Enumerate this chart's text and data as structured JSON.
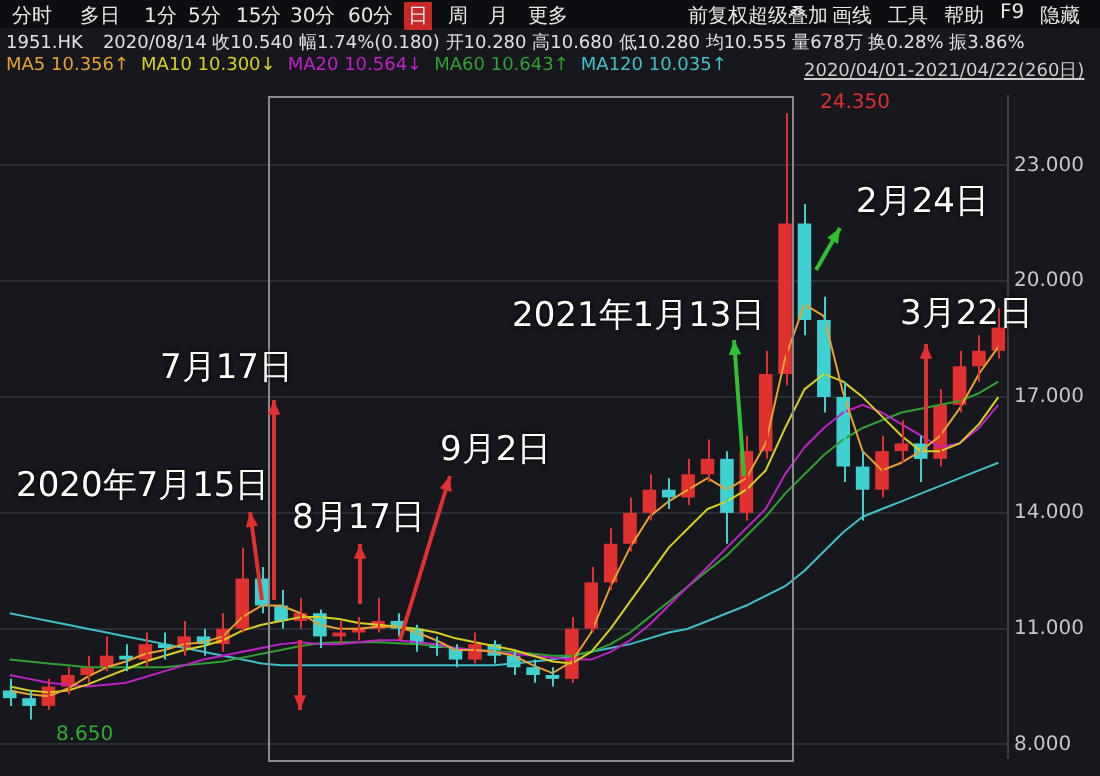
{
  "chart_data": {
    "type": "candlestick",
    "title": "1951.HK",
    "subtitle": "2020/08/14 收10.540 幅1.74%(0.180) 开10.280 高10.680 低10.280 均10.555 量678万 换0.28% 振3.86%",
    "annotations": [
      "分时",
      "多日",
      "1分",
      "5分",
      "15分",
      "30分",
      "60分",
      "日",
      "周",
      "月",
      "更多",
      "前复权",
      "超级叠加",
      "画线",
      "工具",
      "帮助",
      "F9",
      "隐藏",
      "2020/04/01-2021/04/22(260日)",
      "2020年7月15日",
      "7月17日",
      "8月17日",
      "9月2日",
      "2021年1月13日",
      "2月24日",
      "3月22日",
      "8.650",
      "24.350"
    ],
    "categories": [
      null,
      null,
      null,
      null,
      null,
      null,
      null,
      null,
      null,
      null,
      null,
      null,
      null,
      null,
      null,
      null,
      null,
      null,
      null,
      null,
      null,
      null,
      null,
      null,
      null,
      null,
      null,
      null,
      null,
      null,
      null,
      null,
      null,
      null,
      null,
      null,
      null,
      null,
      null,
      null,
      null,
      null,
      null,
      null,
      null,
      null,
      null,
      null,
      null,
      null,
      null,
      null
    ],
    "ohlc": [
      [
        9.4,
        9.7,
        9.0,
        9.2
      ],
      [
        9.2,
        9.4,
        8.65,
        9.0
      ],
      [
        9.0,
        9.7,
        8.9,
        9.5
      ],
      [
        9.5,
        10.0,
        9.3,
        9.8
      ],
      [
        9.8,
        10.3,
        9.6,
        10.0
      ],
      [
        10.0,
        10.8,
        9.9,
        10.3
      ],
      [
        10.3,
        10.6,
        9.9,
        10.2
      ],
      [
        10.2,
        10.9,
        10.0,
        10.6
      ],
      [
        10.6,
        10.9,
        10.2,
        10.5
      ],
      [
        10.5,
        11.2,
        10.3,
        10.8
      ],
      [
        10.8,
        11.0,
        10.3,
        10.6
      ],
      [
        10.6,
        11.4,
        10.4,
        11.0
      ],
      [
        11.0,
        13.1,
        10.9,
        12.3
      ],
      [
        12.3,
        12.6,
        11.4,
        11.6
      ],
      [
        11.6,
        12.0,
        11.0,
        11.2
      ],
      [
        11.2,
        11.8,
        11.0,
        11.4
      ],
      [
        11.4,
        11.5,
        10.5,
        10.8
      ],
      [
        10.8,
        11.2,
        10.6,
        10.9
      ],
      [
        10.9,
        11.3,
        10.7,
        11.0
      ],
      [
        11.0,
        11.8,
        10.9,
        11.2
      ],
      [
        11.2,
        11.4,
        10.8,
        11.0
      ],
      [
        11.0,
        11.1,
        10.4,
        10.6
      ],
      [
        10.6,
        10.8,
        10.3,
        10.5
      ],
      [
        10.5,
        10.6,
        10.0,
        10.2
      ],
      [
        10.2,
        10.9,
        10.1,
        10.6
      ],
      [
        10.6,
        10.7,
        10.1,
        10.3
      ],
      [
        10.3,
        10.4,
        9.8,
        10.0
      ],
      [
        10.0,
        10.2,
        9.6,
        9.8
      ],
      [
        9.8,
        10.0,
        9.5,
        9.7
      ],
      [
        9.7,
        11.3,
        9.6,
        11.0
      ],
      [
        11.0,
        12.6,
        10.9,
        12.2
      ],
      [
        12.2,
        13.6,
        12.0,
        13.2
      ],
      [
        13.2,
        14.4,
        13.0,
        14.0
      ],
      [
        14.0,
        15.0,
        13.8,
        14.6
      ],
      [
        14.6,
        14.9,
        14.1,
        14.4
      ],
      [
        14.4,
        15.4,
        14.2,
        15.0
      ],
      [
        15.0,
        15.9,
        14.8,
        15.4
      ],
      [
        15.4,
        15.6,
        13.2,
        14.0
      ],
      [
        14.0,
        16.0,
        13.8,
        15.6
      ],
      [
        15.6,
        18.2,
        15.4,
        17.6
      ],
      [
        17.6,
        24.35,
        17.3,
        21.5
      ],
      [
        21.5,
        22.0,
        18.6,
        19.0
      ],
      [
        19.0,
        19.6,
        16.6,
        17.0
      ],
      [
        17.0,
        17.4,
        14.8,
        15.2
      ],
      [
        15.2,
        15.6,
        13.8,
        14.6
      ],
      [
        14.6,
        16.0,
        14.4,
        15.6
      ],
      [
        15.6,
        16.4,
        15.3,
        15.8
      ],
      [
        15.8,
        16.0,
        14.8,
        15.4
      ],
      [
        15.4,
        17.2,
        15.2,
        16.8
      ],
      [
        16.8,
        18.2,
        16.6,
        17.8
      ],
      [
        17.8,
        18.6,
        17.4,
        18.2
      ],
      [
        18.2,
        19.3,
        18.0,
        18.8
      ]
    ],
    "series": [
      {
        "type": "line",
        "name": "MA5 10.356↑",
        "color": "#e8a030",
        "values": [
          9.4,
          9.3,
          9.25,
          9.45,
          9.75,
          10.0,
          10.15,
          10.35,
          10.45,
          10.6,
          10.65,
          10.8,
          11.3,
          11.6,
          11.6,
          11.4,
          11.1,
          11.0,
          11.0,
          11.05,
          11.05,
          10.9,
          10.7,
          10.45,
          10.45,
          10.4,
          10.3,
          10.05,
          9.85,
          10.15,
          10.9,
          12.1,
          13.1,
          13.9,
          14.3,
          14.6,
          14.9,
          14.6,
          14.9,
          15.8,
          18.0,
          19.4,
          19.1,
          17.1,
          15.6,
          15.1,
          15.3,
          15.6,
          16.0,
          16.7,
          17.6,
          18.3
        ]
      },
      {
        "type": "line",
        "name": "MA10 10.300↓",
        "color": "#d8d020",
        "values": [
          9.5,
          9.4,
          9.35,
          9.4,
          9.55,
          9.75,
          9.95,
          10.15,
          10.3,
          10.45,
          10.55,
          10.7,
          10.95,
          11.1,
          11.2,
          11.3,
          11.3,
          11.25,
          11.15,
          11.1,
          11.05,
          11.0,
          10.9,
          10.75,
          10.65,
          10.55,
          10.45,
          10.3,
          10.15,
          10.1,
          10.4,
          11.0,
          11.7,
          12.4,
          13.1,
          13.6,
          14.1,
          14.3,
          14.6,
          15.1,
          16.2,
          17.2,
          17.6,
          17.4,
          17.0,
          16.5,
          16.0,
          15.6,
          15.6,
          15.8,
          16.3,
          17.0
        ]
      },
      {
        "type": "line",
        "name": "MA20 10.564↓",
        "color": "#c020c8",
        "values": [
          9.8,
          9.7,
          9.6,
          9.55,
          9.5,
          9.55,
          9.6,
          9.75,
          9.9,
          10.05,
          10.2,
          10.3,
          10.4,
          10.5,
          10.6,
          10.65,
          10.6,
          10.6,
          10.65,
          10.7,
          10.7,
          10.65,
          10.6,
          10.5,
          10.45,
          10.4,
          10.35,
          10.3,
          10.25,
          10.2,
          10.2,
          10.4,
          10.7,
          11.1,
          11.6,
          12.1,
          12.6,
          13.1,
          13.6,
          14.1,
          15.0,
          15.7,
          16.2,
          16.6,
          16.8,
          16.6,
          16.3,
          16.0,
          15.7,
          15.8,
          16.2,
          16.8
        ]
      },
      {
        "type": "line",
        "name": "MA60 10.643↑",
        "color": "#30a030",
        "values": [
          10.2,
          10.15,
          10.1,
          10.05,
          10.0,
          10.0,
          10.0,
          10.0,
          10.0,
          10.05,
          10.1,
          10.15,
          10.25,
          10.35,
          10.45,
          10.55,
          10.62,
          10.65,
          10.65,
          10.65,
          10.62,
          10.6,
          10.55,
          10.5,
          10.45,
          10.42,
          10.4,
          10.35,
          10.3,
          10.3,
          10.4,
          10.6,
          10.9,
          11.3,
          11.7,
          12.1,
          12.5,
          12.9,
          13.4,
          13.9,
          14.5,
          15.0,
          15.5,
          15.9,
          16.2,
          16.4,
          16.6,
          16.7,
          16.8,
          16.9,
          17.1,
          17.4
        ]
      },
      {
        "type": "line",
        "name": "MA120 10.035↑",
        "color": "#40c0c8",
        "values": [
          11.4,
          11.3,
          11.2,
          11.1,
          11.0,
          10.9,
          10.8,
          10.7,
          10.6,
          10.5,
          10.4,
          10.3,
          10.2,
          10.1,
          10.05,
          10.05,
          10.05,
          10.05,
          10.05,
          10.05,
          10.05,
          10.05,
          10.05,
          10.05,
          10.05,
          10.05,
          10.1,
          10.15,
          10.2,
          10.3,
          10.4,
          10.5,
          10.6,
          10.75,
          10.9,
          11.0,
          11.2,
          11.4,
          11.6,
          11.85,
          12.1,
          12.5,
          13.0,
          13.5,
          13.9,
          14.1,
          14.3,
          14.5,
          14.7,
          14.9,
          15.1,
          15.3
        ]
      }
    ],
    "ylim": [
      7.65,
      24.8
    ],
    "yticks": [
      {
        "value": 8,
        "label": "8.000"
      },
      {
        "value": 11,
        "label": "11.000"
      },
      {
        "value": 14,
        "label": "14.000"
      },
      {
        "value": 17,
        "label": "17.000"
      },
      {
        "value": 20,
        "label": "20.000"
      },
      {
        "value": 23,
        "label": "23.000"
      }
    ],
    "grid": "y",
    "legend": "top left",
    "tick_labels": "y"
  }
}
